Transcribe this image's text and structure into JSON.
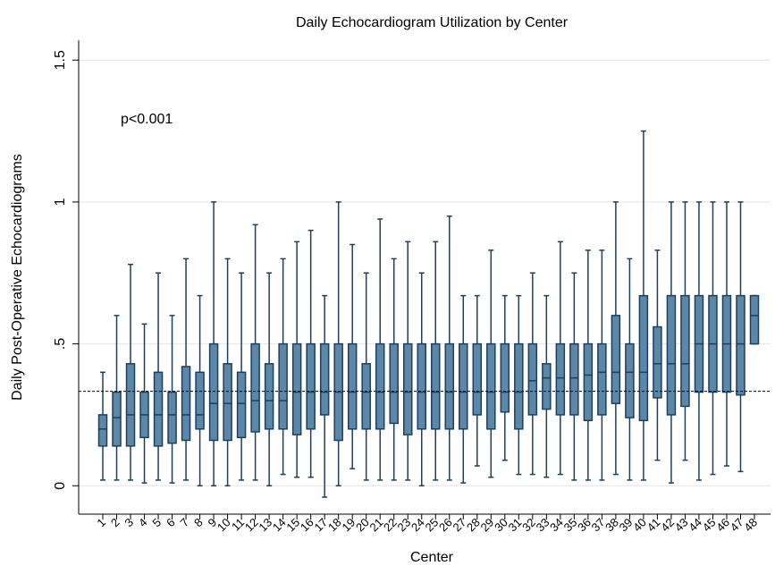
{
  "chart_data": {
    "type": "box",
    "title": "Daily Echocardiogram Utilization by Center",
    "x_label": "Center",
    "y_label": "Daily Post-Operative Echocardiograms",
    "annotation": "p<0.001",
    "categories": [
      "1",
      "2",
      "3",
      "4",
      "5",
      "6",
      "7",
      "8",
      "9",
      "10",
      "11",
      "12",
      "13",
      "14",
      "15",
      "16",
      "17",
      "18",
      "19",
      "20",
      "21",
      "22",
      "23",
      "24",
      "25",
      "26",
      "27",
      "28",
      "29",
      "30",
      "31",
      "32",
      "33",
      "34",
      "35",
      "36",
      "37",
      "38",
      "39",
      "40",
      "41",
      "42",
      "43",
      "44",
      "45",
      "46",
      "47",
      "48"
    ],
    "whislo": [
      0.02,
      0.02,
      0.02,
      0.01,
      0.02,
      0.01,
      0.02,
      0.0,
      0.0,
      0.0,
      0.02,
      0.02,
      0.0,
      0.04,
      0.03,
      0.03,
      -0.04,
      0.0,
      0.06,
      0.02,
      0.02,
      0.02,
      0.02,
      0.0,
      0.02,
      0.02,
      0.01,
      0.07,
      0.03,
      0.09,
      0.04,
      0.04,
      0.03,
      0.04,
      0.02,
      0.02,
      0.02,
      0.04,
      0.02,
      0.02,
      0.09,
      0.01,
      0.09,
      0.02,
      0.04,
      0.07,
      0.05,
      0.5
    ],
    "q1": [
      0.14,
      0.14,
      0.14,
      0.17,
      0.14,
      0.15,
      0.16,
      0.2,
      0.16,
      0.16,
      0.17,
      0.19,
      0.2,
      0.2,
      0.18,
      0.2,
      0.25,
      0.16,
      0.2,
      0.2,
      0.2,
      0.22,
      0.18,
      0.2,
      0.2,
      0.2,
      0.2,
      0.25,
      0.2,
      0.26,
      0.2,
      0.25,
      0.27,
      0.25,
      0.25,
      0.23,
      0.25,
      0.29,
      0.24,
      0.23,
      0.31,
      0.25,
      0.28,
      0.33,
      0.33,
      0.33,
      0.32,
      0.5
    ],
    "median": [
      0.2,
      0.24,
      0.25,
      0.25,
      0.25,
      0.25,
      0.25,
      0.25,
      0.29,
      0.29,
      0.29,
      0.3,
      0.3,
      0.3,
      0.33,
      0.33,
      0.33,
      0.33,
      0.33,
      0.33,
      0.33,
      0.33,
      0.33,
      0.33,
      0.33,
      0.33,
      0.33,
      0.33,
      0.33,
      0.33,
      0.33,
      0.37,
      0.38,
      0.38,
      0.38,
      0.39,
      0.4,
      0.4,
      0.4,
      0.4,
      0.43,
      0.43,
      0.43,
      0.5,
      0.5,
      0.5,
      0.5,
      0.6
    ],
    "q3": [
      0.25,
      0.33,
      0.43,
      0.33,
      0.4,
      0.33,
      0.42,
      0.4,
      0.5,
      0.43,
      0.4,
      0.5,
      0.43,
      0.5,
      0.5,
      0.5,
      0.5,
      0.5,
      0.5,
      0.43,
      0.5,
      0.5,
      0.5,
      0.5,
      0.5,
      0.5,
      0.5,
      0.5,
      0.5,
      0.5,
      0.5,
      0.5,
      0.43,
      0.5,
      0.5,
      0.5,
      0.5,
      0.6,
      0.5,
      0.67,
      0.56,
      0.67,
      0.67,
      0.67,
      0.67,
      0.67,
      0.67,
      0.67
    ],
    "whishi": [
      0.4,
      0.6,
      0.78,
      0.57,
      0.75,
      0.6,
      0.8,
      0.67,
      1.0,
      0.8,
      0.75,
      0.92,
      0.75,
      0.8,
      0.86,
      0.9,
      0.67,
      1.0,
      0.85,
      0.75,
      0.94,
      0.8,
      0.86,
      0.75,
      0.86,
      0.95,
      0.67,
      0.67,
      0.83,
      0.67,
      0.67,
      0.75,
      0.67,
      0.86,
      0.75,
      0.83,
      0.83,
      1.0,
      0.8,
      1.25,
      0.83,
      1.0,
      1.0,
      1.0,
      1.0,
      1.0,
      1.0,
      0.67
    ],
    "color": "#5b87a8",
    "refline": 0.333,
    "ylim": [
      -0.1,
      1.57
    ],
    "yticks": [
      0,
      {
        "value": 0.5,
        "label": ".5"
      },
      1,
      1.5
    ],
    "grid": true
  }
}
